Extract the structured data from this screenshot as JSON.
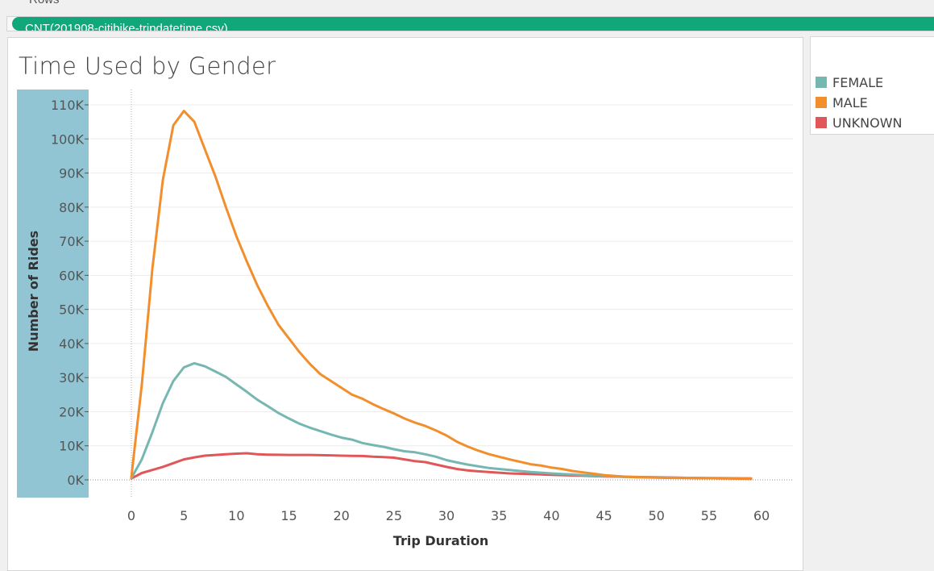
{
  "header": {
    "rows_label": "Rows",
    "rows_pill": "CNT(201908-citibike-tripdatetime.csv)"
  },
  "colors": {
    "female": "#76b7b2",
    "male": "#f28e2b",
    "unknown": "#e15759",
    "axis_band": "#92c5d4"
  },
  "legend": {
    "items": [
      {
        "label": "FEMALE",
        "color": "#76b7b2"
      },
      {
        "label": "MALE",
        "color": "#f28e2b"
      },
      {
        "label": "UNKNOWN",
        "color": "#e15759"
      }
    ]
  },
  "chart_data": {
    "type": "line",
    "title": "Time Used by Gender",
    "xlabel": "Trip Duration",
    "ylabel": "Number of Rides",
    "xlim": [
      -3,
      63
    ],
    "ylim": [
      -5000,
      115000
    ],
    "x_ticks": [
      0,
      5,
      10,
      15,
      20,
      25,
      30,
      35,
      40,
      45,
      50,
      55,
      60
    ],
    "x_tick_labels": [
      "0",
      "5",
      "10",
      "15",
      "20",
      "25",
      "30",
      "35",
      "40",
      "45",
      "50",
      "55",
      "60"
    ],
    "y_ticks": [
      0,
      10000,
      20000,
      30000,
      40000,
      50000,
      60000,
      70000,
      80000,
      90000,
      100000,
      110000
    ],
    "y_tick_labels": [
      "0K",
      "10K",
      "20K",
      "30K",
      "40K",
      "50K",
      "60K",
      "70K",
      "80K",
      "90K",
      "100K",
      "110K"
    ],
    "grid": true,
    "legend_position": "right",
    "x": [
      0,
      1,
      2,
      3,
      4,
      5,
      6,
      7,
      8,
      9,
      10,
      11,
      12,
      13,
      14,
      15,
      16,
      17,
      18,
      19,
      20,
      21,
      22,
      23,
      24,
      25,
      26,
      27,
      28,
      29,
      30,
      31,
      32,
      33,
      34,
      35,
      36,
      37,
      38,
      39,
      40,
      41,
      42,
      43,
      44,
      45,
      46,
      47,
      48,
      49,
      50,
      51,
      52,
      53,
      54,
      55,
      56,
      57,
      58,
      59
    ],
    "series": [
      {
        "name": "FEMALE",
        "values": [
          500,
          6000,
          14000,
          22500,
          29000,
          33000,
          34200,
          33300,
          31800,
          30200,
          28000,
          25800,
          23500,
          21600,
          19600,
          18000,
          16500,
          15300,
          14300,
          13300,
          12400,
          11800,
          10800,
          10200,
          9700,
          9000,
          8400,
          8100,
          7500,
          6800,
          5800,
          5100,
          4500,
          4000,
          3500,
          3200,
          2900,
          2600,
          2300,
          2100,
          1900,
          1700,
          1550,
          1400,
          1200,
          1100,
          1000,
          900,
          800,
          750,
          700,
          650,
          600,
          580,
          560,
          540,
          520,
          500,
          480,
          460
        ]
      },
      {
        "name": "MALE",
        "values": [
          800,
          28000,
          62000,
          88000,
          104000,
          108200,
          105000,
          97000,
          89000,
          80000,
          71500,
          64000,
          57000,
          51000,
          45500,
          41500,
          37500,
          34000,
          31000,
          29000,
          27000,
          25000,
          23800,
          22200,
          20800,
          19500,
          18000,
          16800,
          15800,
          14500,
          13000,
          11200,
          9800,
          8600,
          7600,
          6800,
          6000,
          5300,
          4600,
          4200,
          3600,
          3200,
          2600,
          2200,
          1800,
          1400,
          1150,
          950,
          800,
          700,
          650,
          600,
          560,
          530,
          500,
          480,
          460,
          440,
          420,
          400
        ]
      },
      {
        "name": "UNKNOWN",
        "values": [
          400,
          2000,
          2900,
          3800,
          4900,
          6000,
          6600,
          7100,
          7300,
          7500,
          7700,
          7800,
          7500,
          7400,
          7350,
          7300,
          7300,
          7300,
          7250,
          7200,
          7100,
          7050,
          7000,
          6800,
          6700,
          6500,
          6000,
          5500,
          5200,
          4500,
          3800,
          3200,
          2800,
          2500,
          2300,
          2100,
          1900,
          1800,
          1700,
          1600,
          1500,
          1400,
          1300,
          1200,
          1100,
          1000,
          950,
          900,
          850,
          800,
          750,
          700,
          650,
          600,
          550,
          500,
          450,
          400,
          350,
          300
        ]
      }
    ]
  }
}
